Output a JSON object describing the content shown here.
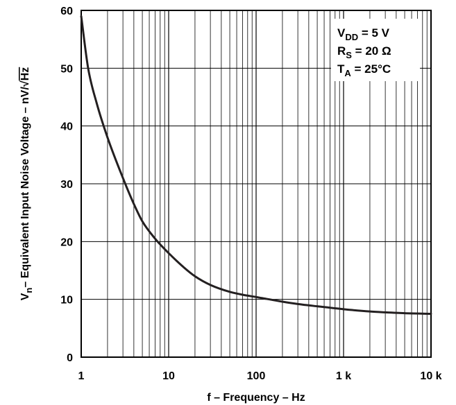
{
  "chart_data": {
    "type": "line",
    "xscale": "log",
    "xlim": [
      1,
      10000
    ],
    "ylim": [
      0,
      60
    ],
    "xlabel": "f – Frequency – Hz",
    "ylabel": "Vn– Equivalent Input Noise Voltage – nV/√Hz",
    "ylabel_parts": {
      "v": "V",
      "n": "n",
      "rest": "– Equivalent Input Noise Voltage – nV/",
      "sqrt": "√",
      "hz": "Hz"
    },
    "x_ticks": [
      {
        "value": 1,
        "label": "1"
      },
      {
        "value": 10,
        "label": "10"
      },
      {
        "value": 100,
        "label": "100"
      },
      {
        "value": 1000,
        "label": "1 k"
      },
      {
        "value": 10000,
        "label": "10 k"
      }
    ],
    "y_ticks": [
      {
        "value": 0,
        "label": "0"
      },
      {
        "value": 10,
        "label": "10"
      },
      {
        "value": 20,
        "label": "20"
      },
      {
        "value": 30,
        "label": "30"
      },
      {
        "value": 40,
        "label": "40"
      },
      {
        "value": 50,
        "label": "50"
      },
      {
        "value": 60,
        "label": "60"
      }
    ],
    "grid": true,
    "series": [
      {
        "x": [
          1,
          1.2,
          1.5,
          2,
          3,
          4,
          5,
          7,
          10,
          15,
          20,
          30,
          50,
          70,
          100,
          200,
          300,
          500,
          1000,
          2000,
          3000,
          5000,
          10000
        ],
        "y": [
          59,
          50,
          44,
          38,
          31,
          26.5,
          23.5,
          20.5,
          18,
          15.5,
          14,
          12.5,
          11.3,
          10.8,
          10.4,
          9.6,
          9.2,
          8.8,
          8.3,
          7.9,
          7.75,
          7.6,
          7.5
        ]
      }
    ],
    "conditions": [
      {
        "var": "V",
        "sub": "DD",
        "value": " = 5 V"
      },
      {
        "var": "R",
        "sub": "S",
        "value": " = 20 Ω"
      },
      {
        "var": "T",
        "sub": "A",
        "value": " = 25°C"
      }
    ],
    "legend_position": "top-right"
  }
}
